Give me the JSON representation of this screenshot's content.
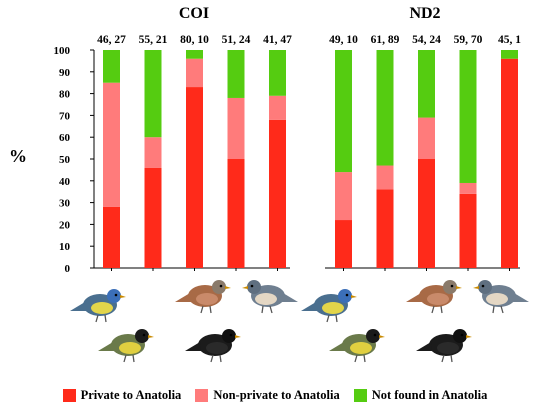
{
  "colors": {
    "private": "#ff2a1a",
    "non_private": "#ff7b7b",
    "not_found": "#55cc11"
  },
  "icons": [
    "blue-tit-icon",
    "chaffinch-icon",
    "nuthatch-icon",
    "great-tit-icon",
    "blackbird-icon"
  ],
  "chart_data": [
    {
      "type": "bar",
      "stacked": true,
      "title": "COI",
      "ylabel": "%",
      "ylim": [
        0,
        100
      ],
      "yticks": [
        0,
        10,
        20,
        30,
        40,
        50,
        60,
        70,
        80,
        90,
        100
      ],
      "grid": false,
      "legend": "bottom",
      "categories": [
        "46, 27",
        "55, 21",
        "80, 10",
        "51, 24",
        "41, 47"
      ],
      "series": [
        {
          "name": "Private to Anatolia",
          "values": [
            28,
            46,
            83,
            50,
            68
          ]
        },
        {
          "name": "Non-private to Anatolia",
          "values": [
            57,
            14,
            13,
            28,
            11
          ]
        },
        {
          "name": "Not found in Anatolia",
          "values": [
            15,
            40,
            4,
            22,
            21
          ]
        }
      ]
    },
    {
      "type": "bar",
      "stacked": true,
      "title": "ND2",
      "ylim": [
        0,
        100
      ],
      "categories": [
        "49, 10",
        "61, 89",
        "54, 24",
        "59, 70",
        "45, 1"
      ],
      "series": [
        {
          "name": "Private to Anatolia",
          "values": [
            22,
            36,
            50,
            34,
            96
          ]
        },
        {
          "name": "Non-private to Anatolia",
          "values": [
            22,
            11,
            19,
            5,
            0
          ]
        },
        {
          "name": "Not found in Anatolia",
          "values": [
            56,
            53,
            31,
            61,
            4
          ]
        }
      ]
    }
  ]
}
